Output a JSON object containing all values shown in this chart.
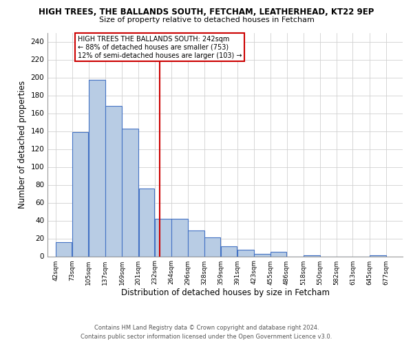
{
  "title": "HIGH TREES, THE BALLANDS SOUTH, FETCHAM, LEATHERHEAD, KT22 9EP",
  "subtitle": "Size of property relative to detached houses in Fetcham",
  "xlabel": "Distribution of detached houses by size in Fetcham",
  "ylabel": "Number of detached properties",
  "footer_line1": "Contains HM Land Registry data © Crown copyright and database right 2024.",
  "footer_line2": "Contains public sector information licensed under the Open Government Licence v3.0.",
  "bar_left_edges": [
    42,
    73,
    105,
    137,
    169,
    201,
    232,
    264,
    296,
    328,
    359,
    391,
    423,
    455,
    486,
    518,
    550,
    582,
    613,
    645
  ],
  "bar_widths": [
    31,
    32,
    32,
    32,
    32,
    31,
    32,
    32,
    32,
    31,
    32,
    32,
    32,
    31,
    32,
    32,
    32,
    31,
    32,
    32
  ],
  "bar_heights": [
    16,
    139,
    197,
    168,
    143,
    76,
    42,
    42,
    29,
    21,
    11,
    7,
    3,
    5,
    0,
    1,
    0,
    0,
    0,
    1
  ],
  "bar_color": "#b8cce4",
  "bar_edgecolor": "#4472c4",
  "highlight_x": 242,
  "highlight_color": "#cc0000",
  "annotation_line1": "HIGH TREES THE BALLANDS SOUTH: 242sqm",
  "annotation_line2": "← 88% of detached houses are smaller (753)",
  "annotation_line3": "12% of semi-detached houses are larger (103) →",
  "annotation_box_border_color": "#cc0000",
  "ylim": [
    0,
    250
  ],
  "yticks": [
    0,
    20,
    40,
    60,
    80,
    100,
    120,
    140,
    160,
    180,
    200,
    220,
    240
  ],
  "x_tick_labels": [
    "42sqm",
    "73sqm",
    "105sqm",
    "137sqm",
    "169sqm",
    "201sqm",
    "232sqm",
    "264sqm",
    "296sqm",
    "328sqm",
    "359sqm",
    "391sqm",
    "423sqm",
    "455sqm",
    "486sqm",
    "518sqm",
    "550sqm",
    "582sqm",
    "613sqm",
    "645sqm",
    "677sqm"
  ],
  "x_tick_positions": [
    42,
    73,
    105,
    137,
    169,
    201,
    232,
    264,
    296,
    328,
    359,
    391,
    423,
    455,
    486,
    518,
    550,
    582,
    613,
    645,
    677
  ],
  "background_color": "#ffffff",
  "grid_color": "#d0d0d0",
  "xlim_left": 26,
  "xlim_right": 709
}
